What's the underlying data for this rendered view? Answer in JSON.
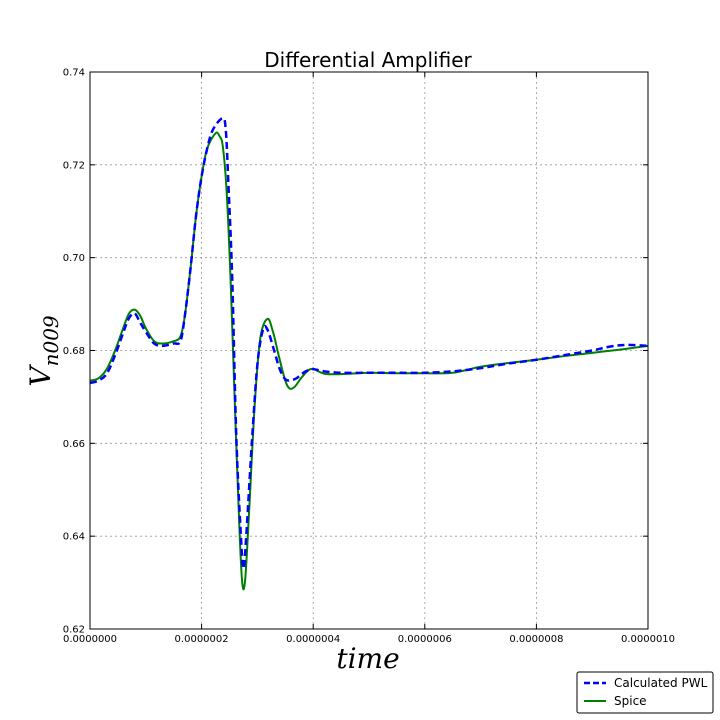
{
  "chart_data": {
    "type": "line",
    "title": "Differential Amplifier",
    "xlabel": "time",
    "ylabel_main": "V",
    "ylabel_sub": "n009",
    "xlim": [
      0,
      1e-06
    ],
    "ylim": [
      0.62,
      0.74
    ],
    "x_ticks": [
      0,
      2e-07,
      4e-07,
      6e-07,
      8e-07,
      1e-06
    ],
    "x_tick_labels": [
      "0.0000000",
      "0.0000002",
      "0.0000004",
      "0.0000006",
      "0.0000008",
      "0.0000010"
    ],
    "y_ticks": [
      0.62,
      0.64,
      0.66,
      0.68,
      0.7,
      0.72,
      0.74
    ],
    "y_tick_labels": [
      "0.62",
      "0.64",
      "0.66",
      "0.68",
      "0.70",
      "0.72",
      "0.74"
    ],
    "grid": true,
    "legend_position": "bottom-right",
    "series": [
      {
        "name": "Calculated PWL",
        "color": "#0000ff",
        "style": "dashed",
        "x": [
          0,
          1.5e-08,
          3e-08,
          4.5e-08,
          6e-08,
          7e-08,
          8e-08,
          9e-08,
          1e-07,
          1.15e-07,
          1.3e-07,
          1.5e-07,
          1.62e-07,
          1.7e-07,
          1.8e-07,
          1.9e-07,
          2e-07,
          2.1e-07,
          2.2e-07,
          2.37e-07,
          2.43e-07,
          2.48e-07,
          2.55e-07,
          2.62e-07,
          2.7e-07,
          2.75e-07,
          2.8e-07,
          2.9e-07,
          3e-07,
          3.1e-07,
          3.18e-07,
          3.3e-07,
          3.4e-07,
          3.5e-07,
          3.6e-07,
          3.7e-07,
          3.8e-07,
          3.9e-07,
          4e-07,
          4.2e-07,
          4.5e-07,
          5e-07,
          5.5e-07,
          6e-07,
          6.5e-07,
          7e-07,
          7.5e-07,
          8e-07,
          8.5e-07,
          9e-07,
          9.3e-07,
          9.6e-07,
          1e-06
        ],
        "y": [
          0.673,
          0.6735,
          0.675,
          0.679,
          0.684,
          0.687,
          0.688,
          0.686,
          0.684,
          0.6815,
          0.681,
          0.6815,
          0.682,
          0.6875,
          0.6975,
          0.709,
          0.7175,
          0.7235,
          0.7275,
          0.73,
          0.728,
          0.716,
          0.695,
          0.662,
          0.641,
          0.633,
          0.64,
          0.66,
          0.677,
          0.6845,
          0.6845,
          0.68,
          0.676,
          0.6738,
          0.6736,
          0.674,
          0.675,
          0.6757,
          0.676,
          0.6755,
          0.6752,
          0.6752,
          0.6752,
          0.6752,
          0.6755,
          0.6762,
          0.6772,
          0.678,
          0.679,
          0.68,
          0.6808,
          0.6812,
          0.681
        ]
      },
      {
        "name": "Spice",
        "color": "#008000",
        "style": "solid",
        "x": [
          0,
          1.5e-08,
          3e-08,
          4.5e-08,
          6e-08,
          7e-08,
          8e-08,
          9e-08,
          1e-07,
          1.15e-07,
          1.3e-07,
          1.5e-07,
          1.62e-07,
          1.7e-07,
          1.8e-07,
          1.9e-07,
          2e-07,
          2.1e-07,
          2.25e-07,
          2.32e-07,
          2.38e-07,
          2.45e-07,
          2.52e-07,
          2.6e-07,
          2.68e-07,
          2.73e-07,
          2.78e-07,
          2.85e-07,
          2.95e-07,
          3.05e-07,
          3.18e-07,
          3.28e-07,
          3.38e-07,
          3.5e-07,
          3.58e-07,
          3.67e-07,
          3.78e-07,
          3.9e-07,
          4e-07,
          4.2e-07,
          4.5e-07,
          5e-07,
          5.5e-07,
          6e-07,
          6.5e-07,
          7e-07,
          7.5e-07,
          8e-07,
          8.5e-07,
          9e-07,
          9.5e-07,
          1e-06
        ],
        "y": [
          0.6735,
          0.674,
          0.676,
          0.68,
          0.685,
          0.688,
          0.6888,
          0.6875,
          0.6848,
          0.682,
          0.6815,
          0.682,
          0.683,
          0.6875,
          0.6975,
          0.709,
          0.7175,
          0.7235,
          0.7268,
          0.7262,
          0.724,
          0.714,
          0.695,
          0.667,
          0.641,
          0.6298,
          0.6305,
          0.645,
          0.668,
          0.6825,
          0.6868,
          0.684,
          0.679,
          0.6735,
          0.6718,
          0.6722,
          0.674,
          0.6756,
          0.676,
          0.675,
          0.6749,
          0.6752,
          0.6751,
          0.6751,
          0.6752,
          0.6765,
          0.6773,
          0.678,
          0.6788,
          0.6795,
          0.6802,
          0.681
        ]
      }
    ]
  }
}
